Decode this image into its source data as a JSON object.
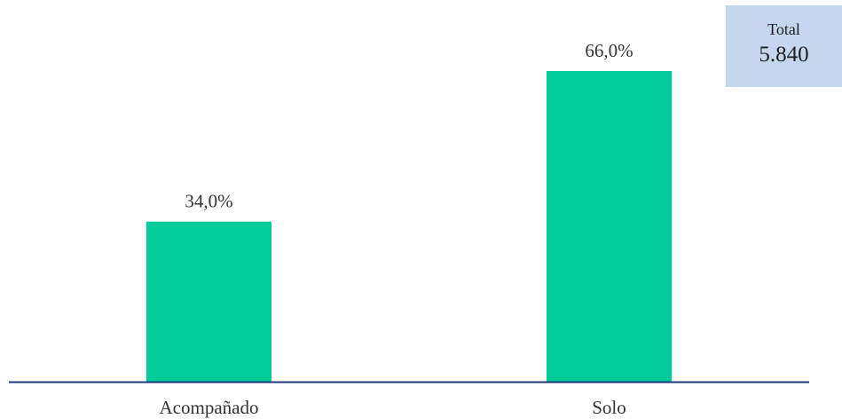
{
  "chart_data": {
    "type": "bar",
    "categories": [
      "Acompañado",
      "Solo"
    ],
    "values": [
      34.0,
      66.0
    ],
    "data_labels": [
      "34,0%",
      "66,0%"
    ],
    "unit": "%",
    "ylim": [
      0,
      70
    ],
    "grid": false,
    "legend": "none",
    "colors": {
      "bar": "#00cc99",
      "axis": "#1f3a7a",
      "text": "#333333"
    }
  },
  "total": {
    "label": "Total",
    "value": "5.840",
    "background": "#c5d7ee"
  }
}
